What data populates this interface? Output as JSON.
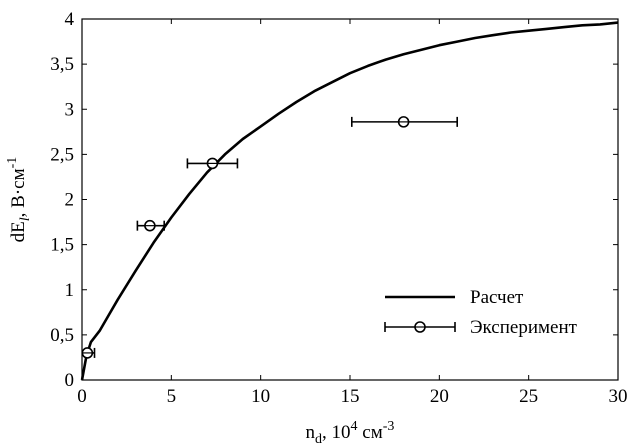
{
  "chart_data": {
    "type": "line",
    "title": "",
    "xlabel": "n_d, 10^4 см^-3",
    "ylabel": "dE_l, В·см^-1",
    "xlim": [
      0,
      30
    ],
    "ylim": [
      0,
      4
    ],
    "x_ticks": [
      "0",
      "5",
      "10",
      "15",
      "20",
      "25",
      "30"
    ],
    "y_ticks": [
      "0",
      "0,5",
      "1",
      "1,5",
      "2",
      "2,5",
      "3",
      "3,5",
      "4"
    ],
    "grid": false,
    "legend_position": "bottom-right",
    "series": [
      {
        "name": "Расчет",
        "kind": "line",
        "color": "#000000",
        "x": [
          0,
          0.25,
          0.5,
          1,
          1.5,
          2,
          3,
          4,
          5,
          6,
          7,
          8,
          9,
          10,
          11,
          12,
          13,
          14,
          15,
          16,
          17,
          18,
          19,
          20,
          21,
          22,
          23,
          24,
          25,
          26,
          27,
          28,
          29,
          30
        ],
        "y": [
          0.0,
          0.27,
          0.42,
          0.55,
          0.72,
          0.89,
          1.21,
          1.52,
          1.8,
          2.06,
          2.3,
          2.5,
          2.67,
          2.81,
          2.95,
          3.08,
          3.2,
          3.3,
          3.4,
          3.48,
          3.55,
          3.61,
          3.66,
          3.71,
          3.75,
          3.79,
          3.82,
          3.85,
          3.87,
          3.89,
          3.91,
          3.93,
          3.94,
          3.96
        ]
      },
      {
        "name": "Эксперимент",
        "kind": "errorbar",
        "color": "#000000",
        "x": [
          0.3,
          3.8,
          7.3,
          18.0
        ],
        "y": [
          0.3,
          1.71,
          2.4,
          2.86
        ],
        "xerr_low": [
          0.3,
          3.1,
          5.9,
          15.1
        ],
        "xerr_high": [
          0.7,
          4.6,
          8.7,
          21.0
        ]
      }
    ]
  }
}
